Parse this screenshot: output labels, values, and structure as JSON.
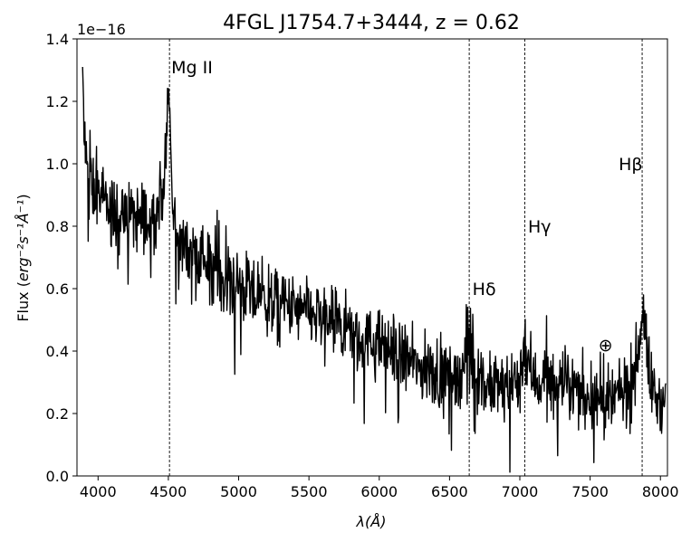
{
  "chart_data": {
    "type": "line",
    "title": "4FGL J1754.7+3444, z = 0.62",
    "xlabel": "λ(Å)",
    "ylabel_prefix": "Flux (",
    "ylabel_math": "erg⁻²s⁻¹Å⁻¹",
    "ylabel_suffix": ")",
    "y_offset_label": "1e−16",
    "xlim": [
      3850,
      8050
    ],
    "ylim": [
      0,
      1.4
    ],
    "grid": false,
    "x_ticks": [
      4000,
      4500,
      5000,
      5500,
      6000,
      6500,
      7000,
      7500,
      8000
    ],
    "x_tick_labels": [
      "4000",
      "4500",
      "5000",
      "5500",
      "6000",
      "6500",
      "7000",
      "7500",
      "8000"
    ],
    "y_ticks": [
      0,
      0.2,
      0.4,
      0.6,
      0.8,
      1.0,
      1.2,
      1.4
    ],
    "y_tick_labels": [
      "0.0",
      "0.2",
      "0.4",
      "0.6",
      "0.8",
      "1.0",
      "1.2",
      "1.4"
    ],
    "spectrum_anchors": {
      "x": [
        3890,
        3900,
        3920,
        3950,
        4000,
        4050,
        4100,
        4150,
        4200,
        4250,
        4300,
        4350,
        4400,
        4450,
        4480,
        4495,
        4505,
        4515,
        4530,
        4560,
        4600,
        4700,
        4800,
        4900,
        5000,
        5100,
        5200,
        5300,
        5400,
        5500,
        5600,
        5700,
        5800,
        5900,
        6000,
        6100,
        6200,
        6300,
        6400,
        6500,
        6600,
        6630,
        6645,
        6660,
        6700,
        6800,
        6900,
        7000,
        7020,
        7035,
        7050,
        7100,
        7200,
        7300,
        7400,
        7500,
        7600,
        7700,
        7800,
        7840,
        7860,
        7875,
        7890,
        7920,
        7950,
        8000,
        8040
      ],
      "y": [
        1.3,
        1.1,
        0.98,
        0.93,
        0.9,
        0.87,
        0.85,
        0.82,
        0.84,
        0.83,
        0.83,
        0.83,
        0.84,
        0.9,
        1.0,
        1.18,
        1.26,
        1.05,
        0.85,
        0.78,
        0.74,
        0.71,
        0.68,
        0.64,
        0.61,
        0.58,
        0.56,
        0.55,
        0.53,
        0.52,
        0.5,
        0.48,
        0.46,
        0.43,
        0.42,
        0.4,
        0.37,
        0.34,
        0.33,
        0.32,
        0.34,
        0.44,
        0.47,
        0.38,
        0.3,
        0.28,
        0.29,
        0.3,
        0.4,
        0.44,
        0.38,
        0.31,
        0.3,
        0.29,
        0.27,
        0.26,
        0.22,
        0.25,
        0.3,
        0.4,
        0.49,
        0.53,
        0.47,
        0.33,
        0.26,
        0.24,
        0.22
      ]
    },
    "noise_amplitude": 0.055,
    "line_color": "#000000",
    "spectral_lines": [
      {
        "name": "Mg II",
        "label": "Mg II",
        "x": 4508,
        "label_y": 1.31,
        "label_x": 4508
      },
      {
        "name": "H-delta",
        "label": "Hδ",
        "x": 6640,
        "label_y": 0.6,
        "label_x": 6650
      },
      {
        "name": "H-gamma",
        "label": "Hγ",
        "x": 7035,
        "label_y": 0.8,
        "label_x": 7045
      },
      {
        "name": "H-beta",
        "label": "Hβ",
        "x": 7870,
        "label_y": 1.0,
        "label_x": 7690
      }
    ],
    "telluric_marker": {
      "label": "⊕",
      "x": 7610,
      "y": 0.42
    }
  }
}
